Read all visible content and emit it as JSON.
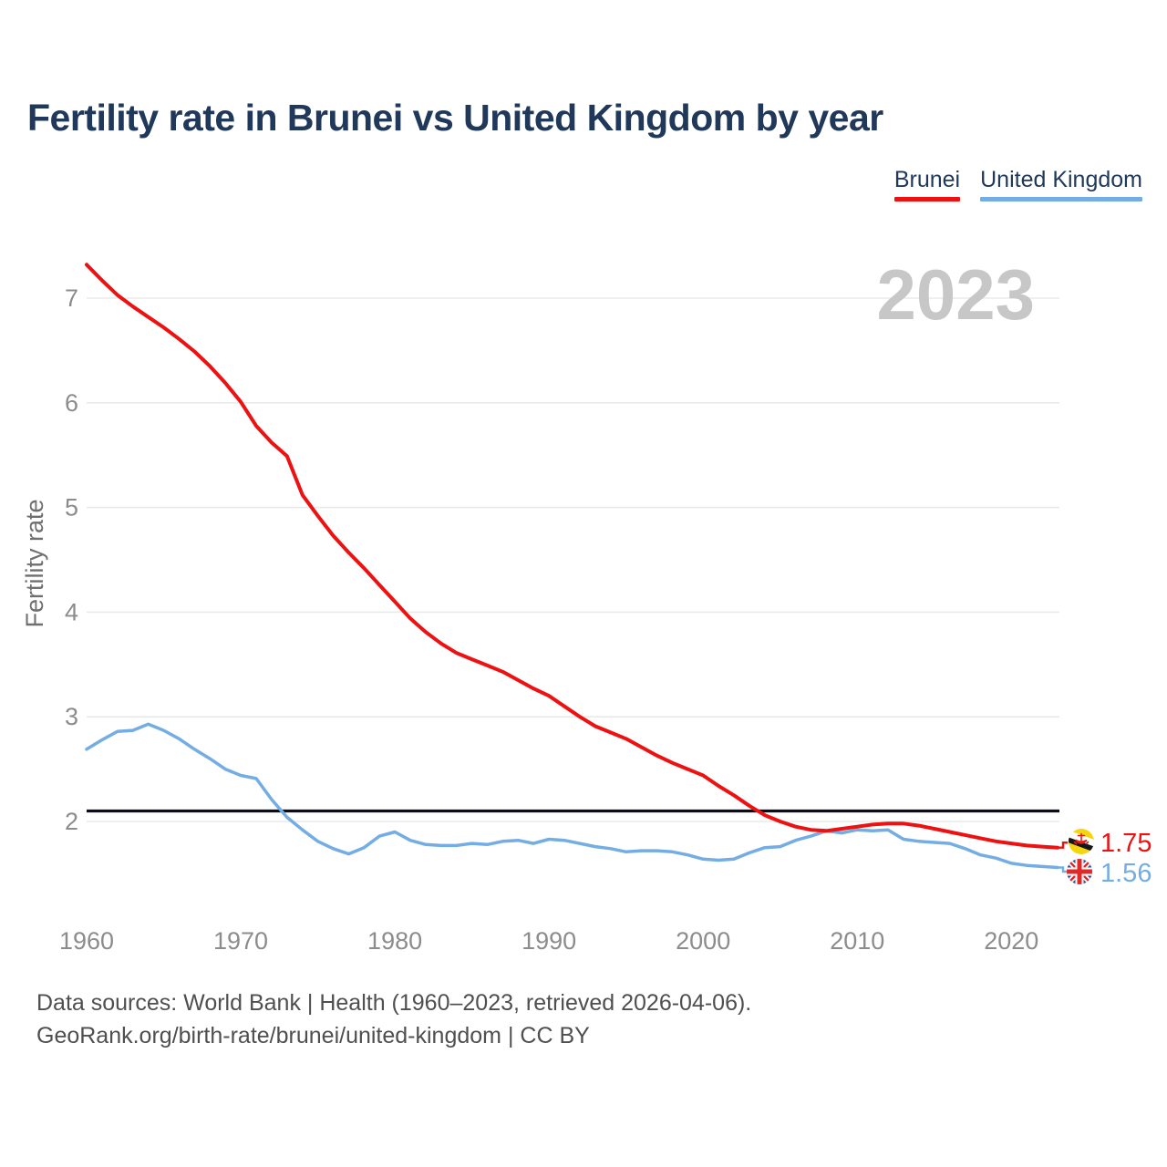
{
  "title": "Fertility rate in Brunei vs United Kingdom by year",
  "watermark": "2023",
  "legend": [
    {
      "label": "Brunei",
      "color": "#ee1111"
    },
    {
      "label": "United Kingdom",
      "color": "#74ade4"
    }
  ],
  "end_labels": {
    "brunei": {
      "value": "1.75",
      "flag_icon": "brunei-flag-icon",
      "color": "#ee1111"
    },
    "uk": {
      "value": "1.56",
      "flag_icon": "uk-flag-icon",
      "color": "#74ade4"
    }
  },
  "footer": {
    "line1": "Data sources: World Bank | Health (1960–2023, retrieved 2026-04-06).",
    "line2": "GeoRank.org/birth-rate/brunei/united-kingdom | CC BY"
  },
  "chart_data": {
    "type": "line",
    "title": "Fertility rate in Brunei vs United Kingdom by year",
    "xlabel": "",
    "ylabel": "Fertility rate",
    "x_range": [
      1960,
      2023
    ],
    "ylim": [
      1.45,
      7.5
    ],
    "yticks": [
      7,
      6,
      5,
      4,
      3,
      2
    ],
    "xticks": [
      1960,
      1970,
      1980,
      1990,
      2000,
      2010,
      2020
    ],
    "grid": "horizontal",
    "legend_position": "top-right",
    "reference_line": {
      "value": 2.1,
      "color": "#0d0d15"
    },
    "x": [
      1960,
      1961,
      1962,
      1963,
      1964,
      1965,
      1966,
      1967,
      1968,
      1969,
      1970,
      1971,
      1972,
      1973,
      1974,
      1975,
      1976,
      1977,
      1978,
      1979,
      1980,
      1981,
      1982,
      1983,
      1984,
      1985,
      1986,
      1987,
      1988,
      1989,
      1990,
      1991,
      1992,
      1993,
      1994,
      1995,
      1996,
      1997,
      1998,
      1999,
      2000,
      2001,
      2002,
      2003,
      2004,
      2005,
      2006,
      2007,
      2008,
      2009,
      2010,
      2011,
      2012,
      2013,
      2014,
      2015,
      2016,
      2017,
      2018,
      2019,
      2020,
      2021,
      2022,
      2023
    ],
    "series": [
      {
        "name": "Brunei",
        "color": "#ee1111",
        "end_label": "1.75",
        "values": [
          7.32,
          7.17,
          7.03,
          6.92,
          6.82,
          6.72,
          6.61,
          6.49,
          6.35,
          6.19,
          6.01,
          5.78,
          5.62,
          5.49,
          5.12,
          4.92,
          4.73,
          4.57,
          4.42,
          4.26,
          4.1,
          3.94,
          3.81,
          3.7,
          3.61,
          3.55,
          3.49,
          3.43,
          3.35,
          3.27,
          3.2,
          3.1,
          3.0,
          2.91,
          2.85,
          2.79,
          2.71,
          2.63,
          2.56,
          2.5,
          2.44,
          2.34,
          2.25,
          2.15,
          2.06,
          2.0,
          1.95,
          1.92,
          1.91,
          1.93,
          1.95,
          1.97,
          1.98,
          1.98,
          1.96,
          1.93,
          1.9,
          1.87,
          1.84,
          1.81,
          1.79,
          1.77,
          1.76,
          1.75
        ]
      },
      {
        "name": "United Kingdom",
        "color": "#74ade4",
        "end_label": "1.56",
        "values": [
          2.69,
          2.78,
          2.86,
          2.87,
          2.93,
          2.87,
          2.79,
          2.69,
          2.6,
          2.5,
          2.44,
          2.41,
          2.21,
          2.04,
          1.92,
          1.81,
          1.74,
          1.69,
          1.75,
          1.86,
          1.9,
          1.82,
          1.78,
          1.77,
          1.77,
          1.79,
          1.78,
          1.81,
          1.82,
          1.79,
          1.83,
          1.82,
          1.79,
          1.76,
          1.74,
          1.71,
          1.72,
          1.72,
          1.71,
          1.68,
          1.64,
          1.63,
          1.64,
          1.7,
          1.75,
          1.76,
          1.82,
          1.86,
          1.91,
          1.89,
          1.92,
          1.91,
          1.92,
          1.83,
          1.81,
          1.8,
          1.79,
          1.74,
          1.68,
          1.65,
          1.6,
          1.58,
          1.57,
          1.56
        ]
      }
    ]
  },
  "colors": {
    "title_text": "#20395a",
    "axis_tick_text": "#8c8c8c",
    "axis_label_text": "#6f6f6f",
    "watermark_text": "#c7c7c7",
    "gridline": "#eaeaea",
    "footer_text": "#4f4f4f"
  }
}
